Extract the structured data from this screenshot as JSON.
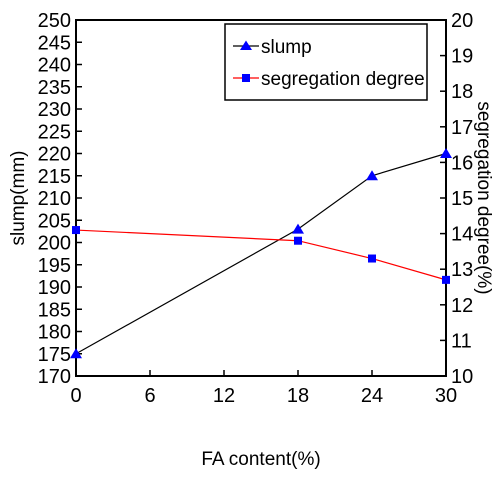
{
  "chart_data": {
    "type": "line",
    "title": "",
    "xlabel": "FA content(%)",
    "ylabel": "slump(mm)",
    "y2label": "segregation degree(%)",
    "x_ticks": [
      "0",
      "6",
      "12",
      "18",
      "24",
      "30"
    ],
    "xlim": [
      0,
      30
    ],
    "ylim": [
      170,
      250
    ],
    "y_ticks": [
      "170",
      "175",
      "180",
      "185",
      "190",
      "195",
      "200",
      "205",
      "210",
      "215",
      "220",
      "225",
      "230",
      "235",
      "240",
      "245",
      "250"
    ],
    "y2lim": [
      10,
      20
    ],
    "y2_ticks": [
      "10",
      "11",
      "12",
      "13",
      "14",
      "15",
      "16",
      "17",
      "18",
      "19",
      "20"
    ],
    "grid": false,
    "legend_position": "top-right",
    "series": [
      {
        "name": "slump",
        "axis": "left",
        "color": "#000000",
        "marker_color": "#0000ff",
        "marker": "triangle",
        "x": [
          0,
          18,
          24,
          30
        ],
        "y": [
          175,
          203,
          215,
          220
        ]
      },
      {
        "name": "segregation degree",
        "axis": "right",
        "color": "#ff0000",
        "marker_color": "#0000ff",
        "marker": "square",
        "x": [
          0,
          18,
          24,
          30
        ],
        "y": [
          14.1,
          13.8,
          13.3,
          12.7
        ]
      }
    ]
  }
}
